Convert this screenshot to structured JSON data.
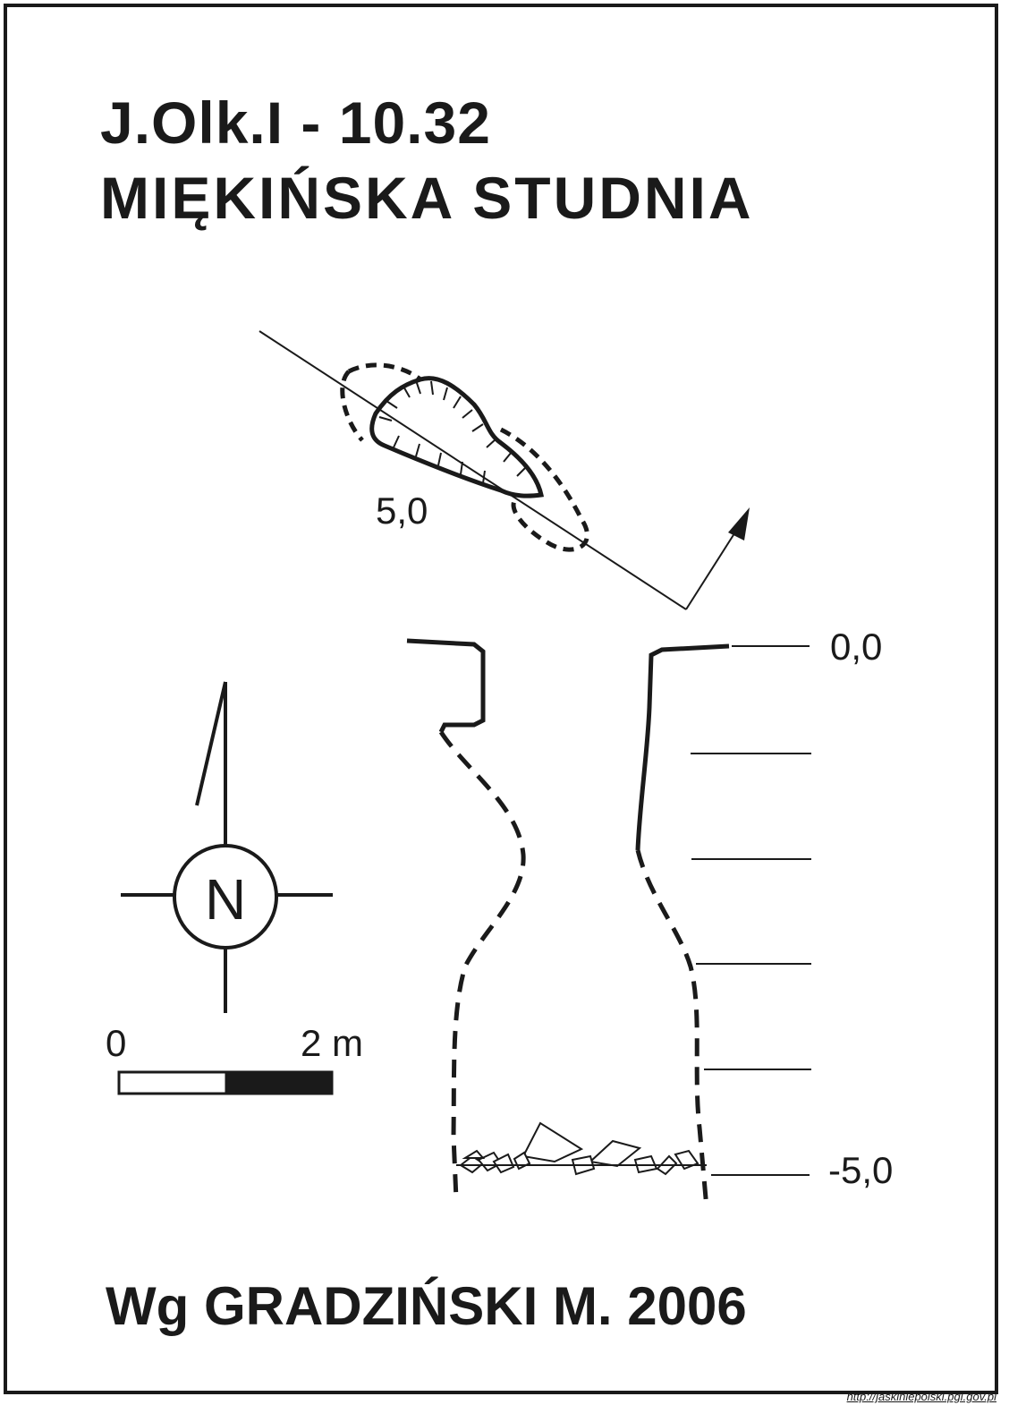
{
  "heading": {
    "code": "J.Olk.I - 10.32",
    "name": "MIĘKIŃSKA  STUDNIA"
  },
  "plan": {
    "depth_label": "5,0"
  },
  "section": {
    "top_label": "0,0",
    "bottom_label": "-5,0"
  },
  "compass": {
    "north_letter": "N"
  },
  "scale": {
    "start_label": "0",
    "end_label": "2 m"
  },
  "credit": {
    "author": "Wg GRADZIŃSKI M. 2006",
    "url": "http://jaskiniepolski.pgi.gov.pl"
  }
}
